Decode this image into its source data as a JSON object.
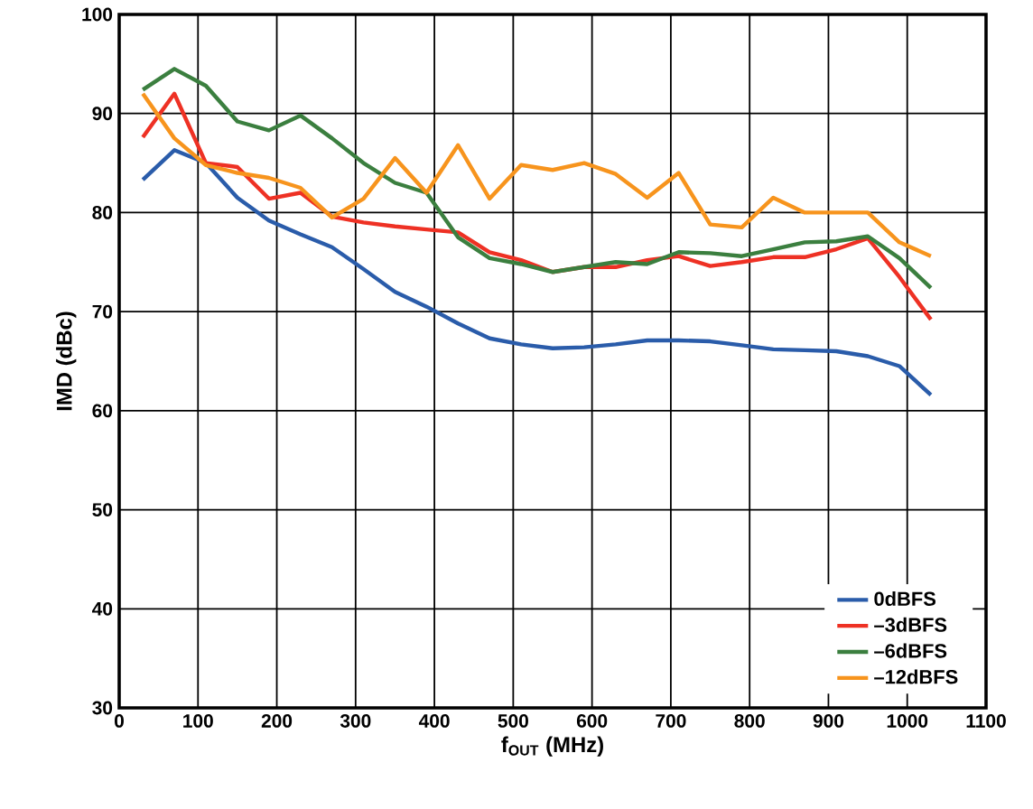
{
  "chart_data": {
    "type": "line",
    "xlabel": "f$_{OUT}$ (MHz)",
    "ylabel": "IMD (dBc)",
    "x": [
      30,
      70,
      110,
      150,
      190,
      230,
      270,
      310,
      350,
      390,
      430,
      470,
      510,
      550,
      590,
      630,
      670,
      710,
      750,
      790,
      830,
      870,
      910,
      950,
      990,
      1030
    ],
    "series": [
      {
        "name": "0dBFS",
        "color": "#2a5caa",
        "values": [
          83.3,
          86.3,
          85.0,
          81.5,
          79.2,
          77.8,
          76.5,
          74.3,
          72.0,
          70.5,
          68.8,
          67.3,
          66.7,
          66.3,
          66.4,
          66.7,
          67.1,
          67.1,
          67.0,
          66.6,
          66.2,
          66.1,
          66.0,
          65.5,
          64.5,
          61.6
        ]
      },
      {
        "name": "–3dBFS",
        "color": "#ee3124",
        "values": [
          87.6,
          92.0,
          85.0,
          84.6,
          81.4,
          82.0,
          79.6,
          79.0,
          78.6,
          78.3,
          78.0,
          76.0,
          75.2,
          74.0,
          74.5,
          74.5,
          75.2,
          75.6,
          74.6,
          75.0,
          75.5,
          75.5,
          76.3,
          77.4,
          73.5,
          69.2
        ]
      },
      {
        "name": "–6dBFS",
        "color": "#3b7f3f",
        "values": [
          92.4,
          94.5,
          92.8,
          89.2,
          88.3,
          89.8,
          87.5,
          85.0,
          83.0,
          82.0,
          77.5,
          75.4,
          74.8,
          74.0,
          74.5,
          75.0,
          74.8,
          76.0,
          75.9,
          75.6,
          76.3,
          77.0,
          77.1,
          77.6,
          75.4,
          72.4
        ]
      },
      {
        "name": "–12dBFS",
        "color": "#f7941d",
        "values": [
          92.0,
          87.5,
          84.8,
          84.0,
          83.5,
          82.5,
          79.5,
          81.4,
          85.5,
          82.0,
          86.8,
          81.4,
          84.8,
          84.3,
          85.0,
          83.9,
          81.5,
          84.0,
          78.8,
          78.5,
          81.5,
          80.0,
          80.0,
          80.0,
          77.0,
          75.6
        ]
      }
    ],
    "xlim": [
      0,
      1100
    ],
    "xticks": [
      0,
      100,
      200,
      300,
      400,
      500,
      600,
      700,
      800,
      900,
      1000,
      1100
    ],
    "ylim": [
      30,
      100
    ],
    "yticks": [
      30,
      40,
      50,
      60,
      70,
      80,
      90,
      100
    ],
    "grid": true,
    "legend": "bottom right",
    "marker": "none",
    "line_style": "solid"
  }
}
